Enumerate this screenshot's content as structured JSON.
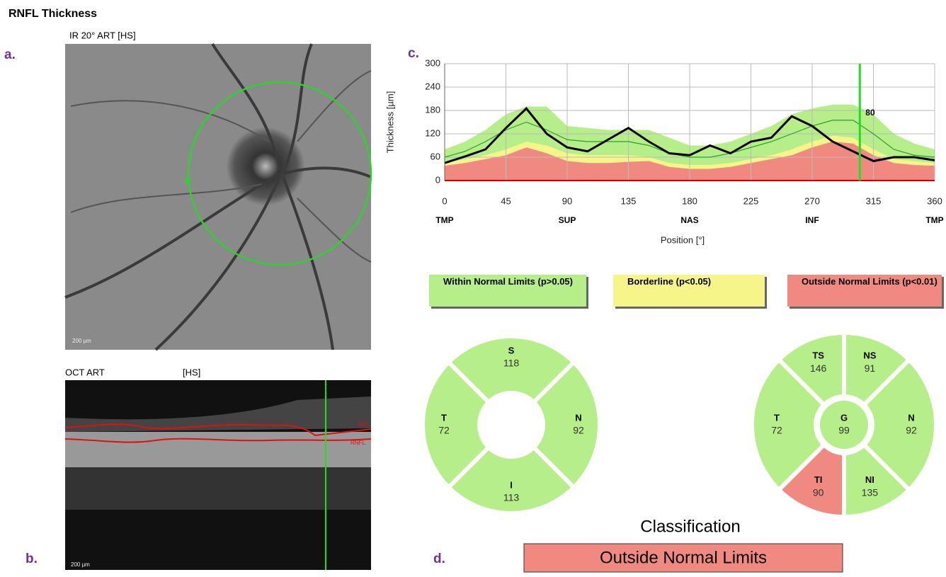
{
  "header": {
    "title": "RNFL Thickness"
  },
  "panel_labels": [
    "a.",
    "b.",
    "c.",
    "d."
  ],
  "ir_image": {
    "label": "IR 20° ART [HS]",
    "scale": "200 µm"
  },
  "oct_image": {
    "label_left": "OCT ART",
    "label_right": "[HS]",
    "scale": "200 µm",
    "layers": [
      "ILM",
      "RNFL"
    ]
  },
  "chart_data": {
    "type": "area",
    "ylabel": "Thickness [µm]",
    "xlabel": "Position [°]",
    "xlim": [
      0,
      360
    ],
    "ylim": [
      0,
      300
    ],
    "xticks": [
      0,
      45,
      90,
      135,
      180,
      225,
      270,
      315,
      360
    ],
    "yticks": [
      0,
      60,
      120,
      180,
      240,
      300
    ],
    "grid": true,
    "sectors": [
      {
        "label": "TMP",
        "position": 0
      },
      {
        "label": "SUP",
        "position": 90
      },
      {
        "label": "NAS",
        "position": 180
      },
      {
        "label": "INF",
        "position": 270
      },
      {
        "label": "TMP",
        "position": 360
      }
    ],
    "x": [
      0,
      15,
      30,
      45,
      60,
      75,
      90,
      105,
      120,
      135,
      150,
      165,
      180,
      195,
      210,
      225,
      240,
      255,
      270,
      285,
      300,
      315,
      330,
      345,
      360
    ],
    "series": [
      {
        "color": "#b6ee8a",
        "kind": "area",
        "values": [
          80,
          100,
          130,
          170,
          190,
          190,
          140,
          135,
          130,
          130,
          130,
          110,
          90,
          90,
          100,
          120,
          140,
          170,
          185,
          195,
          195,
          170,
          120,
          95,
          80
        ]
      },
      {
        "color": "#f6f58a",
        "kind": "area",
        "values": [
          45,
          55,
          65,
          80,
          100,
          90,
          70,
          65,
          65,
          65,
          60,
          45,
          40,
          40,
          45,
          55,
          65,
          80,
          100,
          115,
          110,
          80,
          55,
          50,
          45
        ]
      },
      {
        "color": "#f08a80",
        "kind": "area",
        "values": [
          38,
          45,
          55,
          65,
          85,
          70,
          50,
          45,
          45,
          48,
          50,
          35,
          30,
          30,
          35,
          45,
          55,
          65,
          85,
          100,
          95,
          65,
          45,
          40,
          38
        ]
      },
      {
        "color": "#2e9e2e",
        "kind": "line",
        "values": [
          60,
          75,
          100,
          130,
          150,
          130,
          105,
          100,
          100,
          100,
          90,
          70,
          60,
          60,
          70,
          85,
          100,
          120,
          140,
          155,
          155,
          120,
          80,
          65,
          60
        ]
      },
      {
        "color": "#000000",
        "kind": "line",
        "values": [
          45,
          62,
          80,
          135,
          185,
          120,
          85,
          75,
          105,
          135,
          100,
          70,
          65,
          90,
          70,
          100,
          110,
          165,
          140,
          100,
          75,
          50,
          60,
          60,
          52
        ]
      }
    ],
    "marker": {
      "x": 305,
      "value": 80,
      "color": "#22dd22"
    }
  },
  "legend": [
    {
      "text": "Within Normal Limits (p>0.05)",
      "color": "#b6ee8a"
    },
    {
      "text": "Borderline (p<0.05)",
      "color": "#f6f58a"
    },
    {
      "text": "Outside Normal Limits (p<0.01)",
      "color": "#f08a80"
    }
  ],
  "sector_charts": [
    {
      "sectors": [
        {
          "label": "S",
          "value": 118,
          "color": "#b6ee8a"
        },
        {
          "label": "T",
          "value": 72,
          "color": "#b6ee8a"
        },
        {
          "label": "I",
          "value": 113,
          "color": "#b6ee8a"
        },
        {
          "label": "N",
          "value": 92,
          "color": "#b6ee8a"
        }
      ]
    },
    {
      "sectors": [
        {
          "label": "TS",
          "value": 146,
          "color": "#b6ee8a"
        },
        {
          "label": "NS",
          "value": 91,
          "color": "#b6ee8a"
        },
        {
          "label": "T",
          "value": 72,
          "color": "#b6ee8a"
        },
        {
          "label": "N",
          "value": 92,
          "color": "#b6ee8a"
        },
        {
          "label": "TI",
          "value": 90,
          "color": "#f08a80"
        },
        {
          "label": "NI",
          "value": 135,
          "color": "#b6ee8a"
        },
        {
          "label": "G",
          "value": 99,
          "color": "#b6ee8a"
        }
      ]
    }
  ],
  "classification": {
    "title": "Classification",
    "result": "Outside Normal Limits",
    "color": "#f08a80"
  }
}
